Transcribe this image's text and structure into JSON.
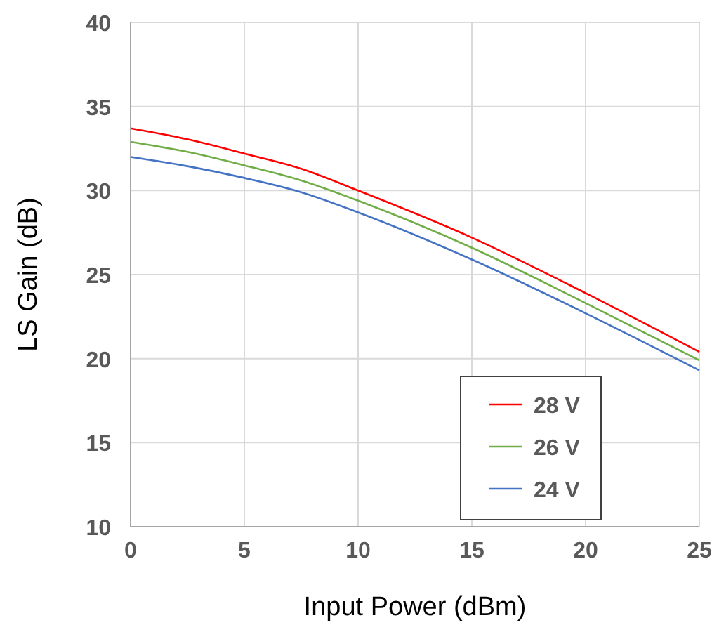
{
  "chart_data": {
    "type": "line",
    "xlabel": "Input Power (dBm)",
    "ylabel": "LS Gain (dB)",
    "x": [
      0,
      2.5,
      5,
      7.5,
      10,
      15,
      20,
      25
    ],
    "series": [
      {
        "name": "28 V",
        "color": "#ff0000",
        "values": [
          33.7,
          33.05,
          32.2,
          31.3,
          30.0,
          27.2,
          23.9,
          20.4
        ]
      },
      {
        "name": "26 V",
        "color": "#70ad47",
        "values": [
          32.9,
          32.3,
          31.5,
          30.6,
          29.4,
          26.6,
          23.3,
          19.9
        ]
      },
      {
        "name": "24 V",
        "color": "#4472c4",
        "values": [
          32.0,
          31.45,
          30.75,
          29.9,
          28.7,
          25.9,
          22.7,
          19.3
        ]
      }
    ],
    "xlim": [
      0,
      25
    ],
    "xticks": [
      0,
      5,
      10,
      15,
      20,
      25
    ],
    "ylim": [
      10,
      40
    ],
    "yticks": [
      10,
      15,
      20,
      25,
      30,
      35,
      40
    ],
    "grid": true,
    "legend": "bottom right",
    "marker": "none",
    "line_style": "solid"
  }
}
